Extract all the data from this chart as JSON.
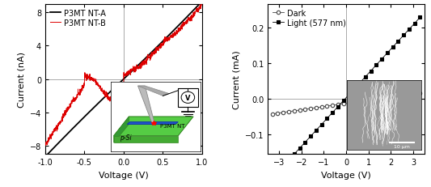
{
  "panel_a": {
    "xlabel": "Voltage (V)",
    "ylabel": "Current (nA)",
    "xlim": [
      -1.0,
      1.0
    ],
    "ylim": [
      -9,
      9
    ],
    "yticks": [
      -8,
      -4,
      0,
      4,
      8
    ],
    "xticks": [
      -1.0,
      -0.5,
      0.0,
      0.5,
      1.0
    ],
    "xtick_labels": [
      "-1.0",
      "-0.5",
      "0.0",
      "0.5",
      "1.0"
    ],
    "nt_a_color": "#000000",
    "nt_b_color": "#dd0000",
    "legend_labels": [
      "P3MT NT-A",
      "P3MT NT-B"
    ]
  },
  "panel_b": {
    "xlabel": "Voltage (V)",
    "ylabel": "Current (mA)",
    "xlim": [
      -3.5,
      3.5
    ],
    "ylim": [
      -0.155,
      0.265
    ],
    "yticks": [
      -0.1,
      0.0,
      0.1,
      0.2
    ],
    "xticks": [
      -3,
      -2,
      -1,
      0,
      1,
      2,
      3
    ],
    "dark_color": "#444444",
    "light_color": "#000000",
    "legend_labels": [
      "Dark",
      "Light (577 nm)"
    ],
    "inset_label": "10 μm"
  },
  "label_fontsize": 8,
  "tick_fontsize": 7,
  "legend_fontsize": 7,
  "panel_label_fontsize": 9,
  "background_color": "#ffffff"
}
